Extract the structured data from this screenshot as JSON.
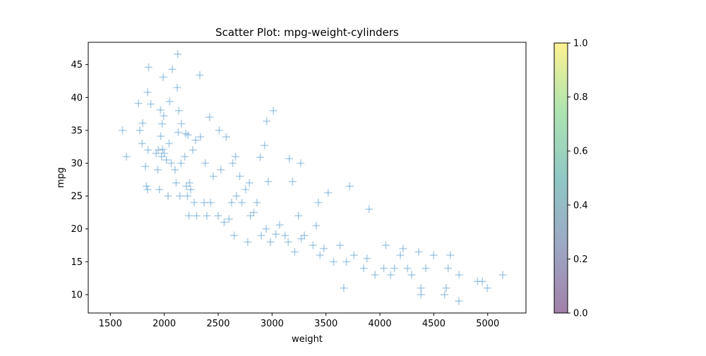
{
  "chart_data": {
    "type": "scatter",
    "title": "Scatter Plot: mpg-weight-cylinders",
    "xlabel": "weight",
    "ylabel": "mpg",
    "xlim": [
      1295,
      5355
    ],
    "ylim": [
      7.2,
      48.4
    ],
    "xticks": [
      "1500",
      "2000",
      "2500",
      "3000",
      "3500",
      "4000",
      "4500",
      "5000"
    ],
    "yticks": [
      "10",
      "15",
      "20",
      "25",
      "30",
      "35",
      "40",
      "45"
    ],
    "marker": "plus",
    "marker_color": "#6fa8d3",
    "grid": false,
    "colorbar": {
      "ticks": [
        "0.0",
        "0.2",
        "0.4",
        "0.6",
        "0.8",
        "1.0"
      ],
      "range": [
        0,
        1
      ],
      "colormap": "viridis",
      "alpha": 0.5
    },
    "series": [
      {
        "points": [
          [
            1613,
            35
          ],
          [
            1649,
            31
          ],
          [
            1760,
            39.1
          ],
          [
            1773,
            35
          ],
          [
            1795,
            33
          ],
          [
            1800,
            36.1
          ],
          [
            1825,
            29.5
          ],
          [
            1835,
            26.5
          ],
          [
            1845,
            26
          ],
          [
            1850,
            32
          ],
          [
            1855,
            44.6
          ],
          [
            1845,
            40.8
          ],
          [
            1875,
            39
          ],
          [
            1925,
            31.5
          ],
          [
            1940,
            29
          ],
          [
            1945,
            32
          ],
          [
            1955,
            26
          ],
          [
            1965,
            38.1
          ],
          [
            1968,
            34.1
          ],
          [
            1975,
            31
          ],
          [
            1980,
            36
          ],
          [
            1985,
            32.1
          ],
          [
            1990,
            43.1
          ],
          [
            1995,
            37.2
          ],
          [
            2000,
            31.5
          ],
          [
            2020,
            30.5
          ],
          [
            2035,
            25
          ],
          [
            2045,
            33
          ],
          [
            2050,
            39.4
          ],
          [
            2065,
            30
          ],
          [
            2075,
            44.3
          ],
          [
            2100,
            29
          ],
          [
            2110,
            27
          ],
          [
            2120,
            41.5
          ],
          [
            2125,
            46.6
          ],
          [
            2130,
            34.7
          ],
          [
            2135,
            38
          ],
          [
            2145,
            25
          ],
          [
            2155,
            30
          ],
          [
            2160,
            36
          ],
          [
            2190,
            31
          ],
          [
            2200,
            34.5
          ],
          [
            2205,
            26.5
          ],
          [
            2215,
            25
          ],
          [
            2220,
            34.3
          ],
          [
            2228,
            22
          ],
          [
            2234,
            27
          ],
          [
            2245,
            26
          ],
          [
            2265,
            32
          ],
          [
            2278,
            24
          ],
          [
            2290,
            33.5
          ],
          [
            2300,
            22
          ],
          [
            2330,
            43.4
          ],
          [
            2335,
            34
          ],
          [
            2370,
            24
          ],
          [
            2380,
            30
          ],
          [
            2395,
            22
          ],
          [
            2420,
            37
          ],
          [
            2430,
            24
          ],
          [
            2455,
            28
          ],
          [
            2500,
            22
          ],
          [
            2510,
            35
          ],
          [
            2525,
            29
          ],
          [
            2556,
            21
          ],
          [
            2575,
            34
          ],
          [
            2600,
            21.5
          ],
          [
            2625,
            24
          ],
          [
            2635,
            30
          ],
          [
            2648,
            19
          ],
          [
            2660,
            31
          ],
          [
            2670,
            25
          ],
          [
            2700,
            28
          ],
          [
            2720,
            24
          ],
          [
            2755,
            26
          ],
          [
            2774,
            18
          ],
          [
            2790,
            27
          ],
          [
            2800,
            22
          ],
          [
            2830,
            22.5
          ],
          [
            2860,
            24
          ],
          [
            2890,
            30.9
          ],
          [
            2900,
            19
          ],
          [
            2930,
            32.7
          ],
          [
            2945,
            20
          ],
          [
            2950,
            36.4
          ],
          [
            2965,
            27.2
          ],
          [
            2985,
            18
          ],
          [
            3012,
            38
          ],
          [
            3035,
            19.2
          ],
          [
            3070,
            20.6
          ],
          [
            3120,
            19
          ],
          [
            3150,
            18
          ],
          [
            3160,
            30.7
          ],
          [
            3190,
            27.2
          ],
          [
            3210,
            16.5
          ],
          [
            3245,
            22
          ],
          [
            3265,
            30
          ],
          [
            3270,
            18.5
          ],
          [
            3300,
            19
          ],
          [
            3380,
            17.5
          ],
          [
            3410,
            20.5
          ],
          [
            3430,
            24
          ],
          [
            3445,
            16
          ],
          [
            3480,
            17
          ],
          [
            3520,
            25.5
          ],
          [
            3570,
            15
          ],
          [
            3630,
            17.5
          ],
          [
            3665,
            11
          ],
          [
            3690,
            15
          ],
          [
            3720,
            26.5
          ],
          [
            3760,
            16
          ],
          [
            3850,
            14
          ],
          [
            3880,
            15.5
          ],
          [
            3900,
            23
          ],
          [
            3955,
            13
          ],
          [
            4036,
            14
          ],
          [
            4055,
            17.5
          ],
          [
            4100,
            13
          ],
          [
            4135,
            14
          ],
          [
            4190,
            16
          ],
          [
            4215,
            17
          ],
          [
            4257,
            14
          ],
          [
            4295,
            13
          ],
          [
            4360,
            16.5
          ],
          [
            4380,
            11
          ],
          [
            4382,
            10
          ],
          [
            4425,
            14
          ],
          [
            4499,
            16
          ],
          [
            4600,
            10
          ],
          [
            4615,
            11
          ],
          [
            4633,
            14
          ],
          [
            4654,
            16
          ],
          [
            4732,
            9
          ],
          [
            4735,
            13
          ],
          [
            4906,
            12
          ],
          [
            4951,
            12
          ],
          [
            4997,
            11
          ],
          [
            5140,
            13
          ]
        ]
      }
    ]
  }
}
